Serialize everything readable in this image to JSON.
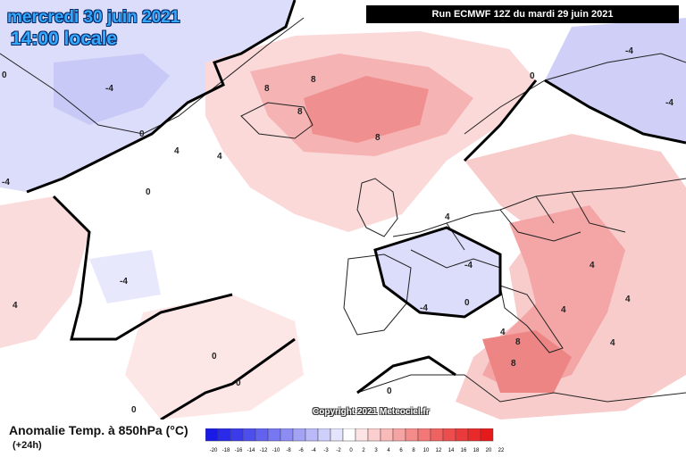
{
  "header": {
    "date": "mercredi 30 juin 2021",
    "time": "14:00 locale",
    "run": "Run ECMWF 12Z du mardi 29 juin 2021"
  },
  "copyright": "Copyright 2021 Meteociel.fr",
  "footer": {
    "variable": "Anomalie Temp. à 850hPa (°C)",
    "lead": "(+24h)"
  },
  "scale": {
    "ticks": [
      "-20",
      "-18",
      "-16",
      "-14",
      "-12",
      "-10",
      "-8",
      "-6",
      "-4",
      "-3",
      "-2",
      "0",
      "2",
      "3",
      "4",
      "6",
      "8",
      "10",
      "12",
      "14",
      "16",
      "18",
      "20",
      "22"
    ],
    "colors": [
      "#1a1ae6",
      "#2a2ae8",
      "#3b3be9",
      "#4e4eec",
      "#6262ef",
      "#7777f2",
      "#8c8cf4",
      "#a3a3f6",
      "#babaf9",
      "#cfcffb",
      "#e4e4fd",
      "#ffffff",
      "#fde4e4",
      "#fbcfcf",
      "#f9baba",
      "#f6a3a3",
      "#f48c8c",
      "#f27777",
      "#ef6262",
      "#ec4e4e",
      "#e93b3b",
      "#e82a2a",
      "#e61a1a"
    ]
  },
  "contour_labels": [
    "8",
    "8",
    "8",
    "8",
    "8",
    "8",
    "4",
    "4",
    "4",
    "4",
    "4",
    "4",
    "4",
    "4",
    "4",
    "0",
    "0",
    "0",
    "0",
    "0",
    "0",
    "0",
    "0",
    "0",
    "-4",
    "-4",
    "-4",
    "-4",
    "-4",
    "-4",
    "-4"
  ]
}
